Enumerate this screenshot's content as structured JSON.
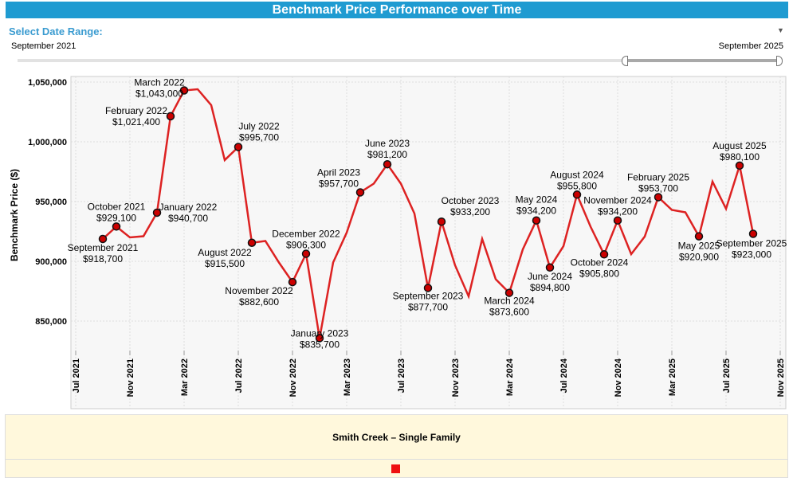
{
  "header": {
    "title": "Benchmark Price Performance over Time"
  },
  "filter": {
    "label": "Select Date Range:",
    "start": "September 2021",
    "end": "September 2025",
    "dropdown_icon": "caret-down-icon"
  },
  "footer": {
    "series_label": "Smith Creek – Single Family",
    "legend_color": "#ee1111"
  },
  "chart_data": {
    "type": "line",
    "title": "Benchmark Price Performance over Time",
    "ylabel": "Benchmark Price ($)",
    "xlabel": "",
    "ylim": [
      820000,
      1055000
    ],
    "y_ticks": [
      "1,050,000",
      "1,000,000",
      "950,000",
      "900,000",
      "850,000"
    ],
    "y_tick_values": [
      1050000,
      1000000,
      950000,
      900000,
      850000
    ],
    "x_ticks": [
      "Jul 2021",
      "Nov 2021",
      "Mar 2022",
      "Jul 2022",
      "Nov 2022",
      "Mar 2023",
      "Jul 2023",
      "Nov 2023",
      "Mar 2024",
      "Jul 2024",
      "Nov 2024",
      "Mar 2025",
      "Jul 2025",
      "Nov 2025"
    ],
    "x_tick_dates": [
      "2021-07",
      "2021-11",
      "2022-03",
      "2022-07",
      "2022-11",
      "2023-03",
      "2023-07",
      "2023-11",
      "2024-03",
      "2024-07",
      "2024-11",
      "2025-03",
      "2025-07",
      "2025-11"
    ],
    "grid": true,
    "line_color": "#dd2222",
    "marker_color": "#cc0000",
    "points": [
      {
        "date": "2021-09",
        "value": 918700,
        "label": "September 2021",
        "value_label": "$918,700"
      },
      {
        "date": "2021-10",
        "value": 929100,
        "label": "October 2021",
        "value_label": "$929,100"
      },
      {
        "date": "2021-11",
        "value": 920000
      },
      {
        "date": "2021-12",
        "value": 921000
      },
      {
        "date": "2022-01",
        "value": 940700,
        "label": "January 2022",
        "value_label": "$940,700"
      },
      {
        "date": "2022-02",
        "value": 1021400,
        "label": "February 2022",
        "value_label": "$1,021,400"
      },
      {
        "date": "2022-03",
        "value": 1043000,
        "label": "March 2022",
        "value_label": "$1,043,000"
      },
      {
        "date": "2022-04",
        "value": 1044000
      },
      {
        "date": "2022-05",
        "value": 1030700
      },
      {
        "date": "2022-06",
        "value": 984700
      },
      {
        "date": "2022-07",
        "value": 995700,
        "label": "July 2022",
        "value_label": "$995,700"
      },
      {
        "date": "2022-08",
        "value": 915500,
        "label": "August 2022",
        "value_label": "$915,500"
      },
      {
        "date": "2022-09",
        "value": 917000
      },
      {
        "date": "2022-10",
        "value": 899000
      },
      {
        "date": "2022-11",
        "value": 882600,
        "label": "November 2022",
        "value_label": "$882,600"
      },
      {
        "date": "2022-12",
        "value": 906300,
        "label": "December 2022",
        "value_label": "$906,300"
      },
      {
        "date": "2023-01",
        "value": 835700,
        "label": "January 2023",
        "value_label": "$835,700"
      },
      {
        "date": "2023-02",
        "value": 899000
      },
      {
        "date": "2023-03",
        "value": 924000
      },
      {
        "date": "2023-04",
        "value": 957700,
        "label": "April 2023",
        "value_label": "$957,700"
      },
      {
        "date": "2023-05",
        "value": 965000
      },
      {
        "date": "2023-06",
        "value": 981200,
        "label": "June 2023",
        "value_label": "$981,200"
      },
      {
        "date": "2023-07",
        "value": 965000
      },
      {
        "date": "2023-08",
        "value": 940000
      },
      {
        "date": "2023-09",
        "value": 877700,
        "label": "September 2023",
        "value_label": "$877,700"
      },
      {
        "date": "2023-10",
        "value": 933200,
        "label": "October 2023",
        "value_label": "$933,200"
      },
      {
        "date": "2023-11",
        "value": 896700
      },
      {
        "date": "2023-12",
        "value": 870700
      },
      {
        "date": "2024-01",
        "value": 918700
      },
      {
        "date": "2024-02",
        "value": 885000
      },
      {
        "date": "2024-03",
        "value": 873600,
        "label": "March 2024",
        "value_label": "$873,600"
      },
      {
        "date": "2024-04",
        "value": 910000
      },
      {
        "date": "2024-05",
        "value": 934200,
        "label": "May 2024",
        "value_label": "$934,200"
      },
      {
        "date": "2024-06",
        "value": 894800,
        "label": "June 2024",
        "value_label": "$894,800"
      },
      {
        "date": "2024-07",
        "value": 912700
      },
      {
        "date": "2024-08",
        "value": 955800,
        "label": "August 2024",
        "value_label": "$955,800"
      },
      {
        "date": "2024-09",
        "value": 929000
      },
      {
        "date": "2024-10",
        "value": 905800,
        "label": "October 2024",
        "value_label": "$905,800"
      },
      {
        "date": "2024-11",
        "value": 934200,
        "label": "November 2024",
        "value_label": "$934,200"
      },
      {
        "date": "2024-12",
        "value": 906000
      },
      {
        "date": "2025-01",
        "value": 920700
      },
      {
        "date": "2025-02",
        "value": 953700,
        "label": "February 2025",
        "value_label": "$953,700"
      },
      {
        "date": "2025-03",
        "value": 943000
      },
      {
        "date": "2025-04",
        "value": 941000
      },
      {
        "date": "2025-05",
        "value": 920900,
        "label": "May 2025",
        "value_label": "$920,900"
      },
      {
        "date": "2025-06",
        "value": 966700
      },
      {
        "date": "2025-07",
        "value": 944000
      },
      {
        "date": "2025-08",
        "value": 980100,
        "label": "August 2025",
        "value_label": "$980,100"
      },
      {
        "date": "2025-09",
        "value": 923000,
        "label": "September 2025",
        "value_label": "$923,000"
      }
    ]
  }
}
